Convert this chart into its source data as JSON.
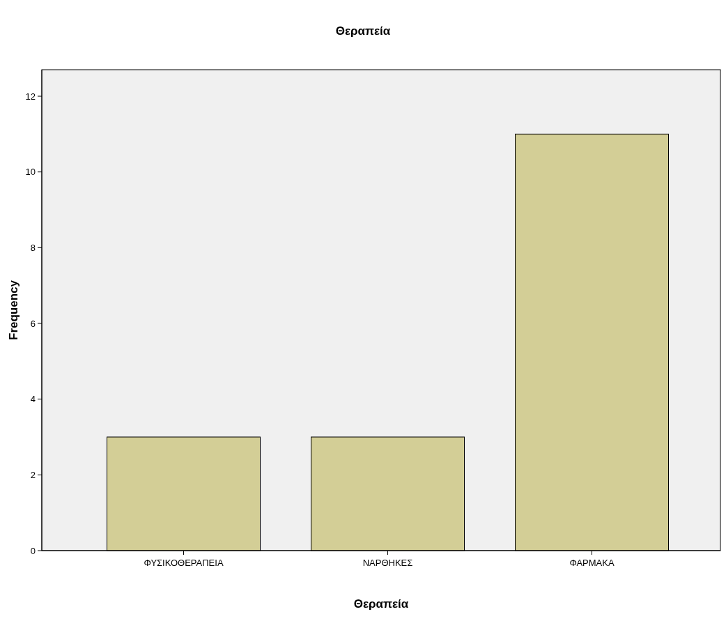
{
  "chart_data": {
    "type": "bar",
    "title": "Θεραπεία",
    "xlabel": "Θεραπεία",
    "ylabel": "Frequency",
    "categories": [
      "ΦΥΣΙΚΟΘΕΡΑΠΕΙΑ",
      "ΝΑΡΘΗΚΕΣ",
      "ΦΑΡΜΑΚΑ"
    ],
    "values": [
      3,
      3,
      11
    ],
    "color": "#d3ce96",
    "ylim": [
      0,
      12.7
    ],
    "yticks": [
      0,
      2,
      4,
      6,
      8,
      10,
      12
    ],
    "grid": false
  }
}
